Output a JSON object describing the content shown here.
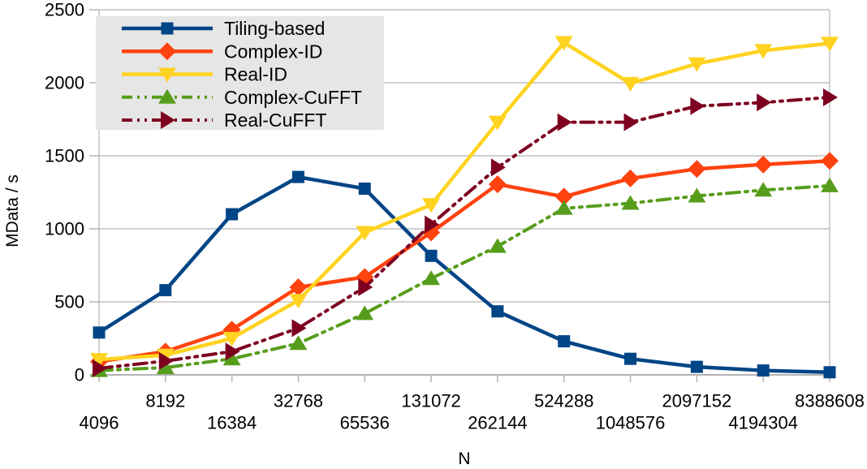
{
  "chart_data": {
    "type": "line",
    "title": "",
    "xlabel": "N",
    "ylabel": "MData / s",
    "x_scale": "log2-categorical",
    "categories": [
      4096,
      8192,
      16384,
      32768,
      65536,
      131072,
      262144,
      524288,
      1048576,
      2097152,
      4194304,
      8388608
    ],
    "x_tick_labels": [
      "4096",
      "8192",
      "16384",
      "32768",
      "65536",
      "131072",
      "262144",
      "524288",
      "1048576",
      "2097152",
      "4194304",
      "8388608"
    ],
    "x_label_stagger": "odd-indices-upper-row",
    "y_ticks": [
      0,
      500,
      1000,
      1500,
      2000,
      2500
    ],
    "ylim": [
      0,
      2500
    ],
    "grid": "horizontal",
    "legend_position": "top-left",
    "series": [
      {
        "name": "Tiling-based",
        "color": "#004586",
        "marker": "square",
        "line": "solid",
        "values": [
          290,
          580,
          1100,
          1355,
          1275,
          815,
          435,
          230,
          110,
          55,
          30,
          18
        ]
      },
      {
        "name": "Complex-ID",
        "color": "#FF420E",
        "marker": "diamond",
        "line": "solid",
        "values": [
          90,
          160,
          310,
          600,
          670,
          975,
          1305,
          1220,
          1345,
          1410,
          1440,
          1465
        ]
      },
      {
        "name": "Real-ID",
        "color": "#FFD320",
        "marker": "triangle-down",
        "line": "solid",
        "values": [
          105,
          135,
          250,
          510,
          975,
          1165,
          1730,
          2275,
          1995,
          2130,
          2220,
          2270
        ]
      },
      {
        "name": "Complex-CuFFT",
        "color": "#579D1C",
        "marker": "triangle-up",
        "line": "dash-dot-dot",
        "values": [
          30,
          50,
          110,
          215,
          420,
          660,
          880,
          1140,
          1175,
          1225,
          1265,
          1295
        ]
      },
      {
        "name": "Real-CuFFT",
        "color": "#7E0021",
        "marker": "triangle-right",
        "line": "dash-dot-dot",
        "values": [
          45,
          95,
          160,
          320,
          600,
          1030,
          1420,
          1730,
          1730,
          1840,
          1865,
          1900
        ]
      }
    ],
    "colors": {
      "background": "#FFFFFF",
      "grid": "#B3B3B3",
      "axis": "#B3B3B3",
      "text": "#000000",
      "legend_background": "#E6E6E6"
    }
  }
}
